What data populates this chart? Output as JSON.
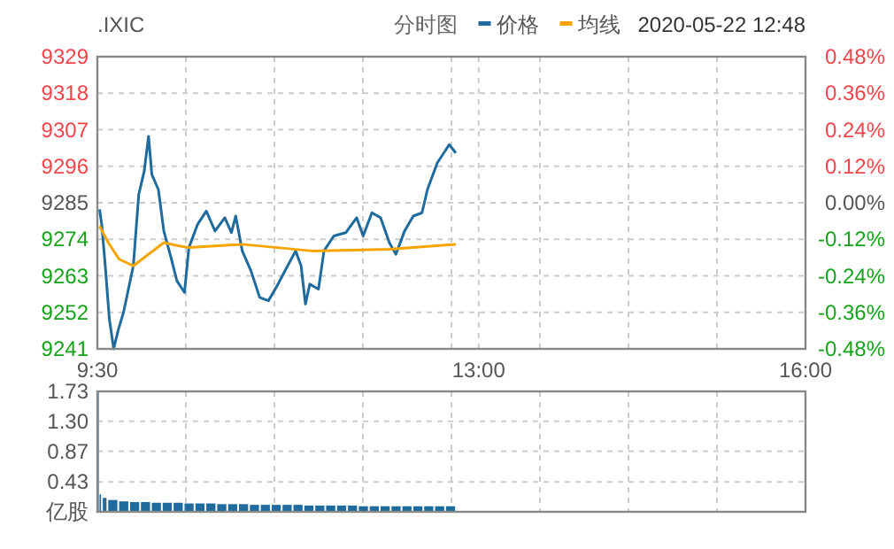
{
  "chart_data": [
    {
      "type": "line",
      "title": ".IXIC",
      "subtitle": "2020-05-22 12:48",
      "annotations": [
        "分时图"
      ],
      "legend": "top right",
      "xlim": [
        9.5,
        16
      ],
      "xticks": [
        {
          "value": 9.5,
          "label": "9:30"
        },
        {
          "value": 10.3125,
          "label": null
        },
        {
          "value": 11.125,
          "label": null
        },
        {
          "value": 11.9375,
          "label": null
        },
        {
          "value": 12.75,
          "label": null
        },
        {
          "value": 13,
          "label": "13:00"
        },
        {
          "value": 13.5625,
          "label": null
        },
        {
          "value": 14.375,
          "label": null
        },
        {
          "value": 15.1875,
          "label": null
        },
        {
          "value": 16,
          "label": "16:00"
        }
      ],
      "ylim": [
        9241,
        9329
      ],
      "yticks": [
        9241,
        9252,
        9263,
        9274,
        9285,
        9296,
        9307,
        9318,
        9329
      ],
      "y2lim": [
        -0.48,
        0.48
      ],
      "y2ticks": [
        {
          "value": -0.48,
          "label": "-0.48%"
        },
        {
          "value": -0.36,
          "label": "-0.36%"
        },
        {
          "value": -0.24,
          "label": "-0.24%"
        },
        {
          "value": -0.12,
          "label": "-0.12%"
        },
        {
          "value": 0,
          "label": "0.00%"
        },
        {
          "value": 0.12,
          "label": "0.12%"
        },
        {
          "value": 0.24,
          "label": "0.24%"
        },
        {
          "value": 0.36,
          "label": "0.36%"
        },
        {
          "value": 0.48,
          "label": "0.48%"
        }
      ],
      "grid": true,
      "series": [
        {
          "name": "价格",
          "color": "#1f6b9e",
          "x": [
            9.52,
            9.54,
            9.57,
            9.61,
            9.65,
            9.69,
            9.74,
            9.83,
            9.88,
            9.93,
            9.97,
            10.0,
            10.06,
            10.11,
            10.18,
            10.23,
            10.3,
            10.34,
            10.42,
            10.5,
            10.58,
            10.67,
            10.73,
            10.77,
            10.83,
            10.91,
            10.99,
            11.07,
            11.15,
            11.23,
            11.32,
            11.37,
            11.41,
            11.45,
            11.53,
            11.58,
            11.67,
            11.78,
            11.88,
            11.94,
            12.02,
            12.1,
            12.18,
            12.24,
            12.32,
            12.4,
            12.48,
            12.53,
            12.62,
            12.68,
            12.73,
            12.79
          ],
          "values": [
            9283,
            9278.5,
            9267,
            9250,
            9241,
            9246.5,
            9252,
            9266,
            9287.5,
            9294.5,
            9305,
            9293.5,
            9289,
            9276.5,
            9268,
            9261.5,
            9258,
            9271.5,
            9278.5,
            9282.5,
            9276.5,
            9280.5,
            9276,
            9281,
            9270.5,
            9264.5,
            9256.5,
            9255.5,
            9260,
            9265,
            9270.5,
            9266,
            9254.5,
            9260.5,
            9259,
            9270.5,
            9275,
            9276,
            9280.5,
            9275,
            9282,
            9280.5,
            9273,
            9269.5,
            9276.5,
            9281,
            9282,
            9289,
            9297,
            9300,
            9302.5,
            9300
          ]
        },
        {
          "name": "均线",
          "color": "#f5a400",
          "x": [
            9.52,
            9.6,
            9.7,
            9.83,
            9.95,
            10.11,
            10.25,
            10.34,
            10.83,
            11.47,
            12.18,
            12.79
          ],
          "values": [
            9278,
            9273,
            9268,
            9266,
            9269,
            9273,
            9272,
            9271.5,
            9272.5,
            9270.5,
            9271,
            9272.5
          ]
        }
      ]
    },
    {
      "type": "bar",
      "tick_labels": "y",
      "grid": true,
      "xlim": [
        9.5,
        16
      ],
      "xticks": [
        {
          "value": 9.5,
          "label": null
        },
        {
          "value": 10.3125,
          "label": null
        },
        {
          "value": 11.125,
          "label": null
        },
        {
          "value": 11.9375,
          "label": null
        },
        {
          "value": 12.75,
          "label": null
        },
        {
          "value": 13.5625,
          "label": null
        },
        {
          "value": 14.375,
          "label": null
        },
        {
          "value": 15.1875,
          "label": null
        },
        {
          "value": 16,
          "label": null
        }
      ],
      "ylim": [
        0,
        1.73
      ],
      "yticks": [
        {
          "value": 0,
          "label": "亿股"
        },
        0.43,
        0.87,
        {
          "value": 1.3,
          "label": "1.30"
        },
        1.73
      ],
      "series": [
        {
          "color": "#1f6b9e",
          "x": [
            9.5,
            9.52,
            9.55,
            9.6,
            9.7,
            9.8,
            9.9,
            10.0,
            10.1,
            10.2,
            10.3,
            10.4,
            10.5,
            10.6,
            10.7,
            10.8,
            10.9,
            11.0,
            11.1,
            11.2,
            11.3,
            11.4,
            11.5,
            11.6,
            11.7,
            11.8,
            11.9,
            12.0,
            12.1,
            12.2,
            12.3,
            12.4,
            12.5,
            12.6,
            12.7
          ],
          "values": [
            1.73,
            0.25,
            0.2,
            0.17,
            0.15,
            0.14,
            0.14,
            0.13,
            0.13,
            0.13,
            0.12,
            0.12,
            0.12,
            0.11,
            0.11,
            0.11,
            0.1,
            0.1,
            0.1,
            0.1,
            0.1,
            0.09,
            0.09,
            0.09,
            0.09,
            0.09,
            0.08,
            0.08,
            0.08,
            0.08,
            0.08,
            0.08,
            0.08,
            0.08,
            0.08
          ]
        }
      ]
    }
  ]
}
